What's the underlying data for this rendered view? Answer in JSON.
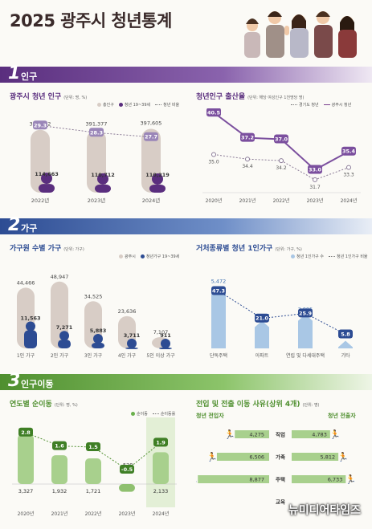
{
  "title": "2025 광주시 청년통계",
  "sections": {
    "s1": {
      "num": "1",
      "label": "인구"
    },
    "s2": {
      "num": "2",
      "label": "가구"
    },
    "s3": {
      "num": "3",
      "label": "인구이동"
    }
  },
  "colors": {
    "purple": "#7b4f9e",
    "purple_dark": "#5a2e7e",
    "beige": "#d8cdc6",
    "navy": "#2d4c93",
    "lightblue": "#a9c7e5",
    "green": "#6ab04c",
    "green_light": "#a8d08d"
  },
  "watermark": "뉴미디어타임즈",
  "chart_data": [
    {
      "id": "youth_population",
      "type": "bar",
      "title": "광주시 청년 인구",
      "unit": "(단위: 명, %)",
      "legend": [
        "총인구",
        "청년 19~39세",
        "청년 비율"
      ],
      "categories": [
        "2022년",
        "2023년",
        "2024년"
      ],
      "series": [
        {
          "name": "총인구",
          "values": [
            391462,
            391377,
            397605
          ],
          "labels": [
            "391,462",
            "391,377",
            "397,605"
          ]
        },
        {
          "name": "청년 19~39세",
          "values": [
            114663,
            110712,
            110219
          ],
          "labels": [
            "114,663",
            "110,712",
            "110,219"
          ]
        },
        {
          "name": "청년 비율",
          "values": [
            29.3,
            28.3,
            27.7
          ],
          "labels": [
            "29.3",
            "28.3",
            "27.7"
          ]
        }
      ]
    },
    {
      "id": "birth_rate",
      "type": "line",
      "title": "청년인구 출산율",
      "unit": "(단위: 해당 여성인구 1천명당 명)",
      "legend": [
        "경기도 청년",
        "광주시 청년"
      ],
      "categories": [
        "2020년",
        "2021년",
        "2022년",
        "2023년",
        "2024년"
      ],
      "series": [
        {
          "name": "경기도 청년",
          "values": [
            35.0,
            34.4,
            34.2,
            31.7,
            33.3
          ],
          "labels": [
            "35.0",
            "34.4",
            "34.2",
            "31.7",
            "33.3"
          ]
        },
        {
          "name": "광주시 청년",
          "values": [
            40.5,
            37.2,
            37.0,
            33.0,
            35.4
          ],
          "labels": [
            "40.5",
            "37.2",
            "37.0",
            "33.0",
            "35.4"
          ]
        }
      ]
    },
    {
      "id": "household_size",
      "type": "bar",
      "title": "가구원 수별 가구",
      "unit": "(단위: 가구)",
      "legend": [
        "광주시",
        "청년가구 19~39세"
      ],
      "categories": [
        "1인 가구",
        "2인 가구",
        "3인 가구",
        "4인 가구",
        "5인 이상 가구"
      ],
      "series": [
        {
          "name": "광주시",
          "values": [
            44466,
            48947,
            34525,
            23636,
            7107
          ],
          "labels": [
            "44,466",
            "48,947",
            "34,525",
            "23,636",
            "7,107"
          ]
        },
        {
          "name": "청년가구 19~39세",
          "values": [
            11563,
            7271,
            5883,
            3711,
            911
          ],
          "labels": [
            "11,563",
            "7,271",
            "5,883",
            "3,711",
            "911"
          ]
        }
      ]
    },
    {
      "id": "single_by_housing",
      "type": "bar",
      "title": "거처종류별 청년 1인가구",
      "unit": "(단위: 가구, %)",
      "legend": [
        "청년 1인가구 수",
        "청년 1인가구 비율"
      ],
      "categories": [
        "단독주택",
        "아파트",
        "연립 및 다세대주택",
        "기타"
      ],
      "series": [
        {
          "name": "청년 1인가구 수",
          "values": [
            5472,
            2427,
            2995,
            669
          ],
          "labels": [
            "5,472",
            "2,427",
            "2,995",
            "669"
          ]
        },
        {
          "name": "청년 1인가구 비율",
          "values": [
            47.3,
            21.0,
            25.9,
            5.8
          ],
          "labels": [
            "47.3",
            "21.0",
            "25.9",
            "5.8"
          ]
        }
      ]
    },
    {
      "id": "net_migration",
      "type": "bar",
      "title": "연도별 순이동",
      "unit": "(단위: 명, %)",
      "legend": [
        "순이동",
        "순이동률"
      ],
      "categories": [
        "2020년",
        "2021년",
        "2022년",
        "2023년",
        "2024년"
      ],
      "series": [
        {
          "name": "순이동",
          "values": [
            3327,
            1932,
            1721,
            -520,
            2133
          ],
          "labels": [
            "3,327",
            "1,932",
            "1,721",
            "-520",
            "2,133"
          ]
        },
        {
          "name": "순이동률",
          "values": [
            2.8,
            1.6,
            1.5,
            -0.5,
            1.9
          ],
          "labels": [
            "2.8",
            "1.6",
            "1.5",
            "-0.5",
            "1.9"
          ]
        }
      ]
    },
    {
      "id": "migration_reasons",
      "type": "bar",
      "title": "전입 및 전출 이동 사유(상위 4개)",
      "unit": "(단위: 명)",
      "col_left": "청년 전입자",
      "col_right": "청년 전출자",
      "categories": [
        "직업",
        "가족",
        "주택",
        "교육"
      ],
      "series": [
        {
          "name": "청년 전입자",
          "values": [
            4275,
            6506,
            8877,
            null
          ],
          "labels": [
            "4,275",
            "6,506",
            "8,877",
            ""
          ]
        },
        {
          "name": "청년 전출자",
          "values": [
            4783,
            5812,
            6733,
            null
          ],
          "labels": [
            "4,783",
            "5,812",
            "6,733",
            ""
          ]
        }
      ]
    }
  ]
}
